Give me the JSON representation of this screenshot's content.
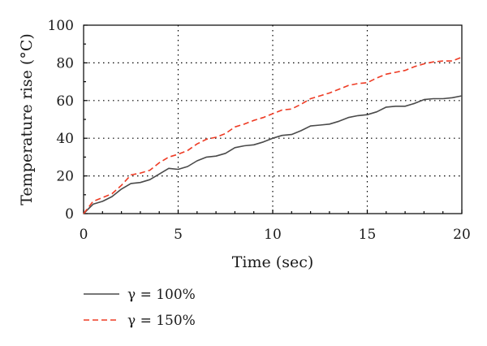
{
  "chart_data": {
    "type": "line",
    "title": "",
    "xlabel": "Time (sec)",
    "ylabel": "Temperature rise (°C)",
    "xlim": [
      0,
      20
    ],
    "ylim": [
      0,
      100
    ],
    "xticks": [
      0,
      5,
      10,
      15,
      20
    ],
    "yticks": [
      0,
      20,
      40,
      60,
      80,
      100
    ],
    "grid": "dotted",
    "legend_position": "bottom-left",
    "series": [
      {
        "name": "γ = 100%",
        "color": "#4a4a4a",
        "style": "solid",
        "x": [
          0,
          0.5,
          1,
          1.5,
          2,
          2.5,
          3,
          3.5,
          4,
          4.5,
          5,
          5.5,
          6,
          6.5,
          7,
          7.5,
          8,
          8.5,
          9,
          9.5,
          10,
          10.5,
          11,
          11.5,
          12,
          12.5,
          13,
          13.5,
          14,
          14.5,
          15,
          15.5,
          16,
          16.5,
          17,
          17.5,
          18,
          18.5,
          19,
          19.5,
          20
        ],
        "y": [
          0,
          5,
          6.5,
          9,
          13,
          16,
          16.5,
          18,
          21,
          24,
          23.5,
          25,
          28,
          30,
          30.5,
          32,
          35,
          36,
          36.5,
          38,
          40,
          41.5,
          42,
          44,
          46.5,
          47,
          47.5,
          49,
          51,
          52,
          52.5,
          54,
          56.5,
          57,
          57,
          58.5,
          60.5,
          61,
          61,
          61.5,
          62.5
        ]
      },
      {
        "name": "γ = 150%",
        "color": "#ee3b24",
        "style": "dashed",
        "x": [
          0,
          0.5,
          1,
          1.5,
          2,
          2.5,
          3,
          3.5,
          4,
          4.5,
          5,
          5.5,
          6,
          6.5,
          7,
          7.5,
          8,
          8.5,
          9,
          9.5,
          10,
          10.5,
          11,
          11.5,
          12,
          12.5,
          13,
          13.5,
          14,
          14.5,
          15,
          15.5,
          16,
          16.5,
          17,
          17.5,
          18,
          18.5,
          19,
          19.5,
          20
        ],
        "y": [
          0,
          6.5,
          8.5,
          10.5,
          15,
          20.5,
          21.5,
          23,
          27,
          30,
          31.5,
          33.5,
          37,
          39.5,
          40.5,
          42.5,
          46,
          47.5,
          49.5,
          51,
          53,
          55,
          55.5,
          58,
          61,
          62.5,
          64,
          66,
          68,
          69,
          69.5,
          72,
          74,
          75,
          76,
          78,
          79.5,
          80.5,
          81,
          81,
          83
        ]
      }
    ]
  }
}
